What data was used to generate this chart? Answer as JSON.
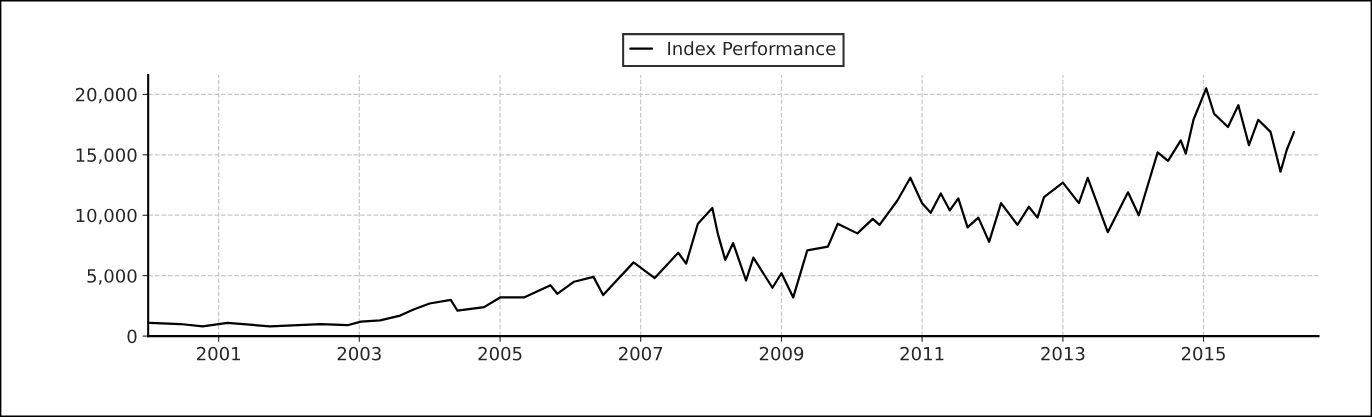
{
  "chart_data": {
    "type": "line",
    "legend": "top",
    "grid": true,
    "line_style": "solid",
    "marker": "none",
    "xlim": [
      "2000-01-01",
      "2016-08-20"
    ],
    "xticks": [
      {
        "value": "2001-01-01",
        "label": "2001"
      },
      {
        "value": "2003-01-01",
        "label": "2003"
      },
      {
        "value": "2005-01-01",
        "label": "2005"
      },
      {
        "value": "2007-01-01",
        "label": "2007"
      },
      {
        "value": "2009-01-01",
        "label": "2009"
      },
      {
        "value": "2011-01-01",
        "label": "2011"
      },
      {
        "value": "2013-01-01",
        "label": "2013"
      },
      {
        "value": "2015-01-01",
        "label": "2015"
      }
    ],
    "ylim": [
      0,
      21600
    ],
    "yticks": [
      0,
      {
        "value": 5000,
        "label": "5,000"
      },
      {
        "value": 10000,
        "label": "10,000"
      },
      {
        "value": 15000,
        "label": "15,000"
      },
      {
        "value": 20000,
        "label": "20,000"
      }
    ],
    "x": [
      "2000-01-10",
      "2000-06-15",
      "2000-10-10",
      "2001-02-15",
      "2001-09-25",
      "2002-06-15",
      "2002-11-01",
      "2003-01-10",
      "2003-04-20",
      "2003-08-01",
      "2003-10-10",
      "2004-01-01",
      "2004-04-20",
      "2004-05-25",
      "2004-10-10",
      "2005-01-01",
      "2005-05-05",
      "2005-09-20",
      "2005-10-25",
      "2006-01-20",
      "2006-05-01",
      "2006-06-20",
      "2006-11-25",
      "2007-03-15",
      "2007-07-15",
      "2007-08-25",
      "2007-10-25",
      "2008-01-08",
      "2008-02-05",
      "2008-03-15",
      "2008-04-25",
      "2008-07-01",
      "2008-08-08",
      "2008-11-15",
      "2009-01-01",
      "2009-03-03",
      "2009-05-15",
      "2009-08-30",
      "2009-10-20",
      "2010-01-30",
      "2010-04-20",
      "2010-05-25",
      "2010-08-25",
      "2010-11-01",
      "2011-01-01",
      "2011-02-15",
      "2011-04-08",
      "2011-05-25",
      "2011-07-08",
      "2011-08-25",
      "2011-10-20",
      "2011-12-15",
      "2012-02-15",
      "2012-05-10",
      "2012-07-08",
      "2012-08-22",
      "2012-09-25",
      "2013-01-01",
      "2013-03-25",
      "2013-05-10",
      "2013-08-22",
      "2013-12-05",
      "2014-01-30",
      "2014-03-18",
      "2014-05-08",
      "2014-07-01",
      "2014-09-05",
      "2014-10-01",
      "2014-11-10",
      "2015-01-15",
      "2015-02-25",
      "2015-05-08",
      "2015-07-01",
      "2015-08-25",
      "2015-10-12",
      "2015-12-15",
      "2016-02-05",
      "2016-03-08",
      "2016-04-15"
    ],
    "series": [
      {
        "name": "Index Performance",
        "color": "#000000",
        "values": [
          1100,
          1000,
          800,
          1100,
          800,
          1000,
          900,
          1200,
          1300,
          1700,
          2200,
          2700,
          3000,
          2100,
          2400,
          3200,
          3200,
          4200,
          3500,
          4500,
          4900,
          3400,
          6100,
          4800,
          6900,
          6000,
          9300,
          10600,
          8500,
          6300,
          7700,
          4600,
          6500,
          4000,
          5200,
          3200,
          7100,
          7400,
          9300,
          8500,
          9700,
          9200,
          11200,
          13100,
          11000,
          10200,
          11800,
          10400,
          11400,
          9000,
          9800,
          7800,
          11000,
          9200,
          10700,
          9800,
          11500,
          12700,
          11000,
          13100,
          8600,
          11900,
          10000,
          12500,
          15200,
          14500,
          16200,
          15100,
          17900,
          20500,
          18400,
          17300,
          19100,
          15800,
          17900,
          16900,
          13600,
          15400,
          16900
        ]
      }
    ]
  }
}
